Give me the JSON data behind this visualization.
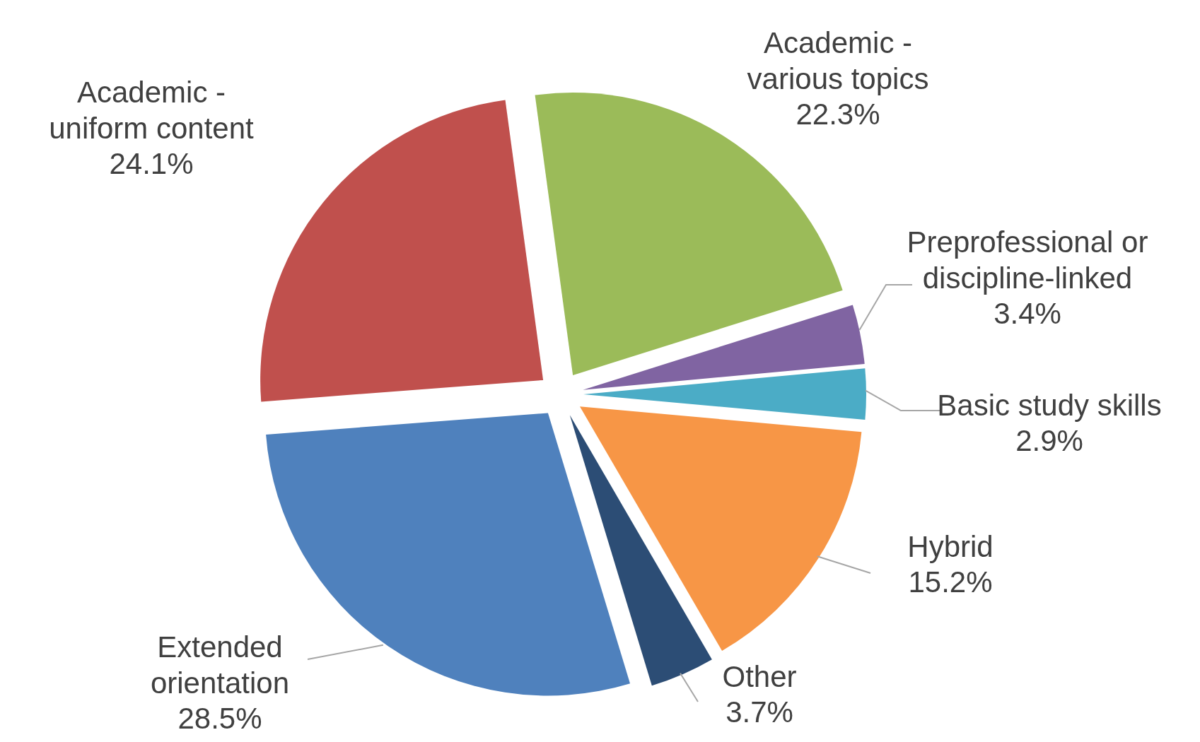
{
  "chart_data": {
    "type": "pie",
    "categories": [
      "Academic - various topics",
      "Preprofessional or discipline-linked",
      "Basic study skills",
      "Hybrid",
      "Other",
      "Extended orientation",
      "Academic - uniform content"
    ],
    "values": [
      22.3,
      3.4,
      2.9,
      15.2,
      3.7,
      28.5,
      24.1
    ],
    "colors": [
      "#9bbb59",
      "#8064a2",
      "#4bacc6",
      "#f79646",
      "#2c4d75",
      "#4f81bd",
      "#c0504d"
    ],
    "value_labels": [
      "22.3%",
      "3.4%",
      "2.9%",
      "15.2%",
      "3.7%",
      "28.5%",
      "24.1%"
    ]
  }
}
